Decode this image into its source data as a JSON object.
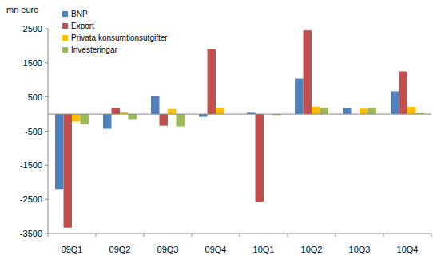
{
  "chart_data": {
    "type": "bar",
    "y_label": "mn euro",
    "categories": [
      "09Q1",
      "09Q2",
      "09Q3",
      "09Q4",
      "10Q1",
      "10Q2",
      "10Q3",
      "10Q4"
    ],
    "series": [
      {
        "name": "BNP",
        "color": "#4f81bd",
        "values": [
          -2200,
          -430,
          530,
          -80,
          40,
          1040,
          170,
          670
        ]
      },
      {
        "name": "Export",
        "color": "#c0504d",
        "values": [
          -3330,
          170,
          -340,
          1900,
          -2570,
          2450,
          0,
          1250
        ]
      },
      {
        "name": "Privata konsumtionsutgifter",
        "color": "#ffc000",
        "values": [
          -220,
          50,
          150,
          180,
          0,
          220,
          160,
          210
        ]
      },
      {
        "name": "Investeringar",
        "color": "#9bbb59",
        "values": [
          -300,
          -150,
          -360,
          0,
          -30,
          180,
          180,
          30
        ]
      }
    ],
    "ylim": [
      -3500,
      2500
    ],
    "yticks": [
      -3500,
      -2500,
      -1500,
      -500,
      500,
      1500,
      2500
    ],
    "grid": false,
    "legend": "top-left"
  }
}
